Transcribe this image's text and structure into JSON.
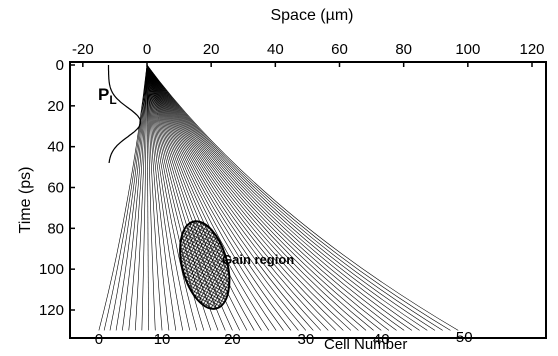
{
  "chart_data": {
    "type": "line",
    "title": "",
    "xlabel": "Space (µm)",
    "ylabel": "Time (ps)",
    "xlim": [
      -20,
      120
    ],
    "ylim": [
      0,
      130
    ],
    "x_ticks": [
      "-20",
      "0",
      "20",
      "40",
      "60",
      "80",
      "100",
      "120"
    ],
    "x_tick_values": [
      -20,
      0,
      20,
      40,
      60,
      80,
      100,
      120
    ],
    "y_ticks": [
      "0",
      "20",
      "40",
      "60",
      "80",
      "100",
      "120"
    ],
    "y_tick_values": [
      0,
      20,
      40,
      60,
      80,
      100,
      120
    ],
    "secondary_axis": {
      "label": "Cell Number",
      "ticks": [
        "0",
        "10",
        "20",
        "30",
        "40",
        "50"
      ],
      "cells": [
        0,
        10,
        20,
        30,
        40,
        50
      ]
    },
    "trajectories": {
      "count": 51,
      "origin": {
        "x": 0,
        "t": 0
      },
      "end_time": 130,
      "end_x_cell0": -15,
      "end_x_cell50": 97
    },
    "pulse": {
      "label": "P",
      "label_sub": "L",
      "center_t": 28,
      "width_t": 10,
      "baseline_x": -12,
      "amplitude_x": 10
    },
    "gain_region": {
      "label": "Gain region",
      "center": {
        "x": 18,
        "t": 98
      },
      "rx": 7,
      "rt": 22,
      "rotation_deg": -15
    }
  }
}
